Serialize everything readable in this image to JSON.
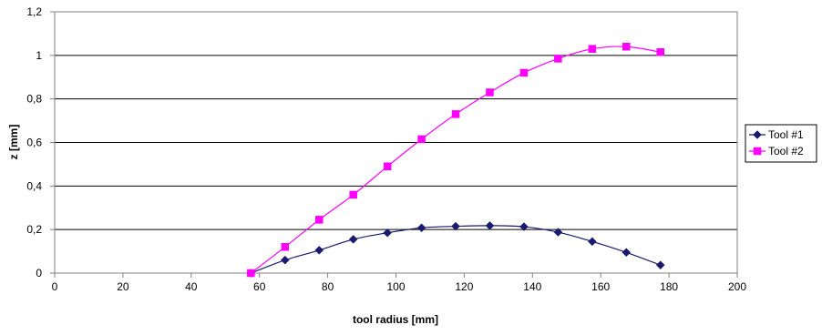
{
  "chart_data": {
    "type": "line",
    "title": "",
    "xlabel": "tool radius [mm]",
    "ylabel": "z [mm]",
    "xlim": [
      0,
      200
    ],
    "ylim": [
      0,
      1.2
    ],
    "x_ticks": [
      0,
      20,
      40,
      60,
      80,
      100,
      120,
      140,
      160,
      180,
      200
    ],
    "x_tick_labels": [
      "0",
      "20",
      "40",
      "60",
      "80",
      "100",
      "120",
      "140",
      "160",
      "180",
      "200"
    ],
    "y_ticks": [
      0,
      0.2,
      0.4,
      0.6,
      0.8,
      1.0,
      1.2
    ],
    "y_tick_labels": [
      "0",
      "0,2",
      "0,4",
      "0,6",
      "0,8",
      "1",
      "1,2"
    ],
    "grid": "horizontal",
    "legend_position": "right",
    "series": [
      {
        "name": "Tool #1",
        "color": "#1a1a6e",
        "marker": "diamond",
        "x": [
          57.5,
          67.5,
          77.5,
          87.5,
          97.5,
          107.5,
          117.5,
          127.5,
          137.5,
          147.5,
          157.5,
          167.5,
          177.5
        ],
        "y": [
          0.0,
          0.06,
          0.105,
          0.155,
          0.185,
          0.208,
          0.215,
          0.218,
          0.213,
          0.188,
          0.145,
          0.095,
          0.037
        ]
      },
      {
        "name": "Tool #2",
        "color": "#ff00ff",
        "marker": "square",
        "x": [
          57.5,
          67.5,
          77.5,
          87.5,
          97.5,
          107.5,
          117.5,
          127.5,
          137.5,
          147.5,
          157.5,
          167.5,
          177.5
        ],
        "y": [
          0.0,
          0.12,
          0.245,
          0.36,
          0.49,
          0.615,
          0.73,
          0.83,
          0.92,
          0.985,
          1.03,
          1.04,
          1.015
        ]
      }
    ]
  }
}
